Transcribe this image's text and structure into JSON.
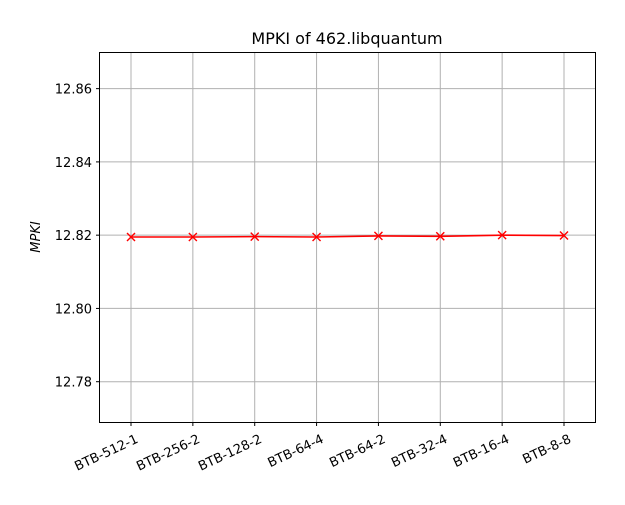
{
  "chart_data": {
    "type": "line",
    "title": "MPKI of 462.libquantum",
    "xlabel": "",
    "ylabel": "MPKI",
    "categories": [
      "BTB-512-1",
      "BTB-256-2",
      "BTB-128-2",
      "BTB-64-4",
      "BTB-64-2",
      "BTB-32-4",
      "BTB-16-4",
      "BTB-8-8"
    ],
    "series": [
      {
        "values": [
          12.8195,
          12.8195,
          12.8196,
          12.8195,
          12.8198,
          12.8197,
          12.82,
          12.8199
        ],
        "color": "#ff0000",
        "marker": "x"
      }
    ],
    "ylim": [
      12.769,
      12.87
    ],
    "yticks": [
      12.78,
      12.8,
      12.82,
      12.84,
      12.86
    ],
    "ytick_labels": [
      "12.78",
      "12.80",
      "12.82",
      "12.84",
      "12.86"
    ],
    "grid": true,
    "legend": "none"
  }
}
